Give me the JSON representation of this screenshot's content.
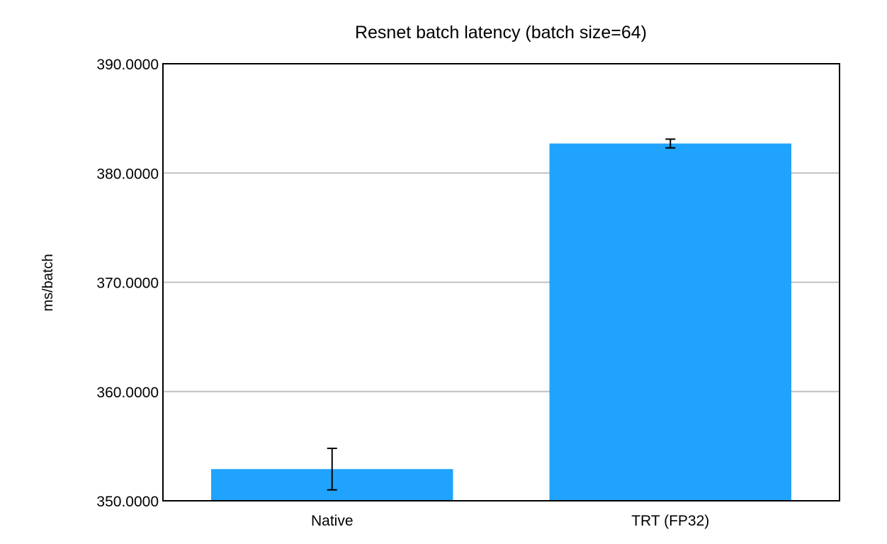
{
  "chart_data": {
    "type": "bar",
    "title": "Resnet batch latency (batch size=64)",
    "xlabel": "",
    "ylabel": "ms/batch",
    "categories": [
      "Native",
      "TRT (FP32)"
    ],
    "values": [
      352.9,
      382.7
    ],
    "error_bars": [
      {
        "low": 351.0,
        "high": 354.8
      },
      {
        "low": 382.3,
        "high": 383.1
      }
    ],
    "ylim": [
      350,
      390
    ],
    "yticks": [
      350,
      360,
      370,
      380,
      390
    ],
    "ytick_labels": [
      "350.0000",
      "360.0000",
      "370.0000",
      "380.0000",
      "390.0000"
    ],
    "grid": true,
    "bar_color": "#1fa3fc",
    "grid_color": "#c0c0c0"
  }
}
